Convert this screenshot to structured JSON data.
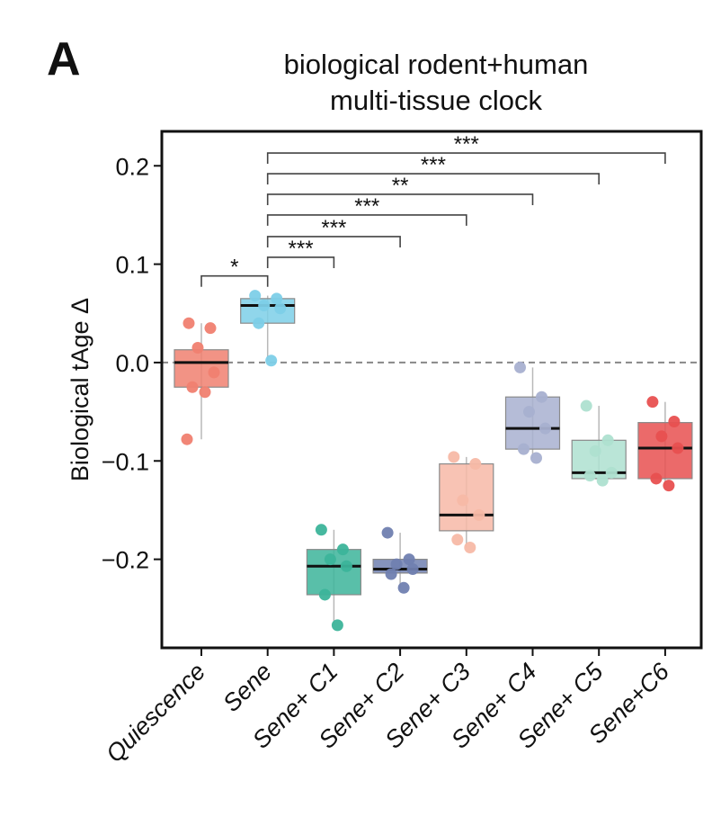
{
  "panel_label": "A",
  "chart_data": {
    "type": "box",
    "title_lines": [
      "biological rodent+human",
      "multi-tissue clock"
    ],
    "ylabel": "Biological tAge Δ",
    "xlabel": "",
    "ylim": [
      -0.29,
      0.235
    ],
    "yticks": [
      0.2,
      0.1,
      0.0,
      -0.1,
      -0.2
    ],
    "ytick_labels": [
      "0.2",
      "0.1",
      "0.0",
      "−0.1",
      "−0.2"
    ],
    "reference_line": 0,
    "categories": [
      "Quiescence",
      "Sene",
      "Sene+ C1",
      "Sene+ C2",
      "Sene+ C3",
      "Sene+ C4",
      "Sene+ C5",
      "Sene+C6"
    ],
    "colors": [
      "#f08070",
      "#7dcfe8",
      "#3cb49a",
      "#7080b0",
      "#f7b9a7",
      "#a8b0d0",
      "#aee0d0",
      "#e85050"
    ],
    "boxes": [
      {
        "q1": -0.025,
        "median": 0.0,
        "q3": 0.013,
        "whisker_low": -0.078,
        "whisker_high": 0.04,
        "points": [
          0.04,
          0.035,
          0.015,
          -0.01,
          -0.025,
          -0.03,
          -0.078
        ]
      },
      {
        "q1": 0.04,
        "median": 0.058,
        "q3": 0.065,
        "whisker_low": 0.002,
        "whisker_high": 0.068,
        "points": [
          0.068,
          0.065,
          0.058,
          0.055,
          0.04,
          0.002
        ]
      },
      {
        "q1": -0.236,
        "median": -0.207,
        "q3": -0.19,
        "whisker_low": -0.267,
        "whisker_high": -0.17,
        "points": [
          -0.17,
          -0.19,
          -0.2,
          -0.207,
          -0.236,
          -0.267
        ]
      },
      {
        "q1": -0.214,
        "median": -0.21,
        "q3": -0.2,
        "whisker_low": -0.229,
        "whisker_high": -0.173,
        "points": [
          -0.173,
          -0.2,
          -0.205,
          -0.21,
          -0.215,
          -0.229
        ]
      },
      {
        "q1": -0.171,
        "median": -0.155,
        "q3": -0.103,
        "whisker_low": -0.188,
        "whisker_high": -0.096,
        "points": [
          -0.096,
          -0.103,
          -0.14,
          -0.155,
          -0.18,
          -0.188
        ]
      },
      {
        "q1": -0.088,
        "median": -0.067,
        "q3": -0.035,
        "whisker_low": -0.097,
        "whisker_high": -0.005,
        "points": [
          -0.005,
          -0.035,
          -0.05,
          -0.067,
          -0.088,
          -0.097
        ]
      },
      {
        "q1": -0.118,
        "median": -0.112,
        "q3": -0.079,
        "whisker_low": -0.12,
        "whisker_high": -0.044,
        "points": [
          -0.044,
          -0.079,
          -0.09,
          -0.112,
          -0.115,
          -0.12
        ]
      },
      {
        "q1": -0.118,
        "median": -0.087,
        "q3": -0.061,
        "whisker_low": -0.125,
        "whisker_high": -0.04,
        "points": [
          -0.04,
          -0.06,
          -0.075,
          -0.087,
          -0.118,
          -0.125
        ]
      }
    ],
    "significance": [
      {
        "from": 0,
        "to": 1,
        "label": "*",
        "y": 0.088
      },
      {
        "from": 1,
        "to": 2,
        "label": "***",
        "y": 0.107
      },
      {
        "from": 1,
        "to": 3,
        "label": "***",
        "y": 0.128
      },
      {
        "from": 1,
        "to": 4,
        "label": "***",
        "y": 0.15
      },
      {
        "from": 1,
        "to": 5,
        "label": "**",
        "y": 0.171
      },
      {
        "from": 1,
        "to": 6,
        "label": "***",
        "y": 0.192
      },
      {
        "from": 1,
        "to": 7,
        "label": "***",
        "y": 0.213
      }
    ]
  }
}
